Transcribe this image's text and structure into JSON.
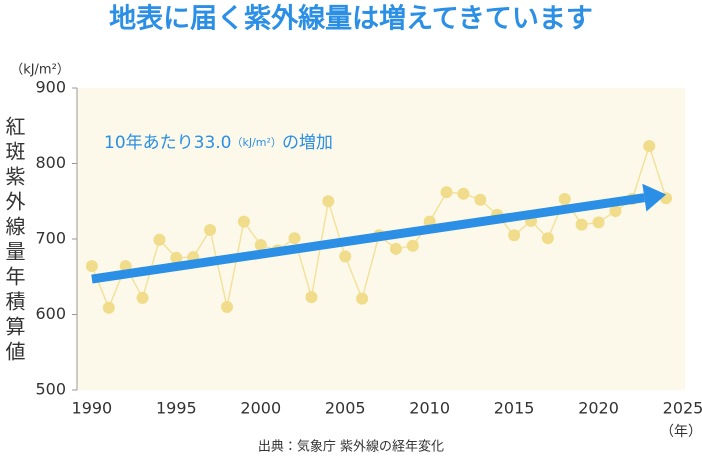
{
  "chart_data": {
    "type": "line",
    "title": "地表に届く紫外線量は増えてきています",
    "y_label": "紅斑紫外線量年積算値",
    "y_unit": "（kJ/m²）",
    "x_unit": "（年）",
    "annotation": [
      "10年あたり33.0",
      "（kJ/m²）",
      "の増加"
    ],
    "source": "出典：気象庁 紫外線の経年変化",
    "x": [
      1990,
      1991,
      1992,
      1993,
      1994,
      1995,
      1996,
      1997,
      1998,
      1999,
      2000,
      2001,
      2002,
      2003,
      2004,
      2005,
      2006,
      2007,
      2008,
      2009,
      2010,
      2011,
      2012,
      2013,
      2014,
      2015,
      2016,
      2017,
      2018,
      2019,
      2020,
      2021,
      2022,
      2023,
      2024
    ],
    "series": [
      {
        "color": "#f0dc8a",
        "values": [
          664,
          609,
          664,
          622,
          699,
          675,
          676,
          712,
          610,
          723,
          692,
          685,
          701,
          623,
          750,
          677,
          621,
          705,
          687,
          691,
          723,
          762,
          760,
          752,
          732,
          705,
          724,
          701,
          753,
          719,
          722,
          737,
          753,
          823,
          754
        ]
      }
    ],
    "trend": {
      "color": "#2b8fe6",
      "x": [
        1990,
        2024
      ],
      "values": [
        647,
        759
      ]
    },
    "xlim": [
      1989,
      2025
    ],
    "xticks": [
      1990,
      1995,
      2000,
      2005,
      2010,
      2015,
      2020,
      2025
    ],
    "ylim": [
      500,
      900
    ],
    "yticks": [
      500,
      600,
      700,
      800,
      900
    ],
    "grid": false
  }
}
